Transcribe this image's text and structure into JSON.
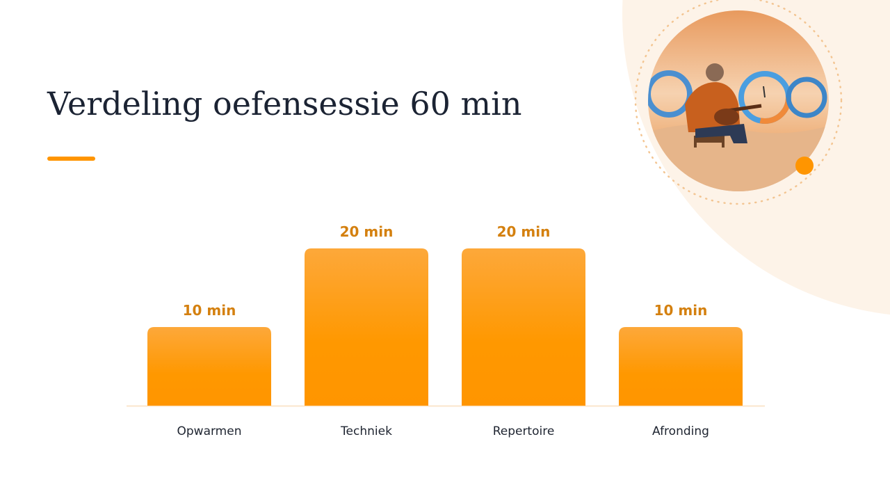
{
  "chart_data": {
    "type": "bar",
    "title": "Verdeling oefensessie 60 min",
    "categories": [
      "Opwarmen",
      "Techniek",
      "Repertoire",
      "Afronding"
    ],
    "values": [
      10,
      20,
      20,
      10
    ],
    "value_labels": [
      "10 min",
      "20 min",
      "20 min",
      "10 min"
    ],
    "color": "#ff9800"
  }
}
